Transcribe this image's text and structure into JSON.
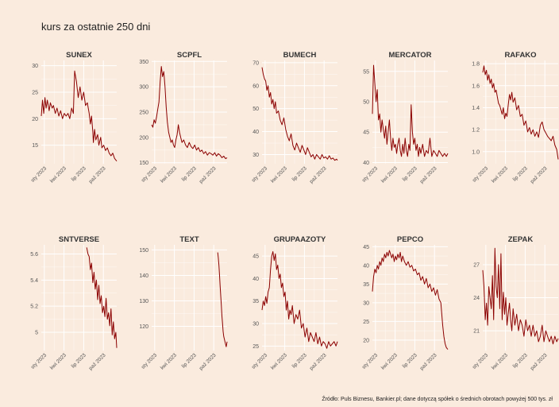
{
  "title": "kurs za ostatnie 250 dni",
  "caption": "Źródło: Puls Biznesu, Bankier.pl; dane dotyczą spółek o średnich obrotach powyżej 500 tys. zł",
  "colors": {
    "background": "#faebde",
    "series": "#8b0000",
    "grid": "#ffffff"
  },
  "chart_data": [
    {
      "type": "line",
      "title": "SUNEX",
      "ylim": [
        11.5,
        31
      ],
      "yticks": [
        15,
        20,
        25,
        30
      ],
      "xticks": [
        "sty 2023",
        "kwi 2023",
        "lip 2023",
        "paź 2023"
      ],
      "series": [
        {
          "x": [
            0,
            4,
            8,
            12,
            16,
            20,
            26,
            30,
            36,
            40,
            46,
            52,
            58,
            64,
            70,
            76,
            82,
            88,
            94,
            100,
            106,
            110,
            116,
            122,
            128,
            134,
            140,
            146,
            152,
            158,
            162,
            166,
            170,
            172,
            176,
            180,
            186,
            190,
            196,
            200,
            206,
            212,
            218,
            224,
            230,
            236,
            242,
            249
          ],
          "y": [
            20.5,
            23.5,
            21,
            24,
            22,
            23.5,
            21.5,
            23,
            22,
            22.5,
            21,
            22,
            20.5,
            21.5,
            20,
            21,
            20.5,
            21,
            20,
            22,
            21,
            29,
            27,
            24,
            26,
            23.5,
            25,
            22.5,
            23,
            21,
            19,
            20.5,
            17.5,
            15.5,
            18,
            16,
            17,
            15,
            16.5,
            14.5,
            15,
            14,
            14.5,
            13.5,
            13,
            13.5,
            12.5,
            12
          ]
        }
      ]
    },
    {
      "type": "line",
      "title": "SCPFL",
      "ylim": [
        148,
        352
      ],
      "yticks": [
        150,
        200,
        250,
        300,
        350
      ],
      "xticks": [
        "sty 2023",
        "kwi 2023",
        "lip 2023",
        "paź 2023"
      ],
      "series": [
        {
          "x": [
            0,
            4,
            8,
            12,
            16,
            20,
            24,
            28,
            32,
            36,
            40,
            44,
            48,
            52,
            56,
            60,
            64,
            68,
            72,
            76,
            80,
            84,
            88,
            92,
            96,
            100,
            106,
            112,
            118,
            124,
            130,
            136,
            142,
            148,
            154,
            160,
            166,
            172,
            178,
            184,
            190,
            196,
            202,
            208,
            214,
            220,
            226,
            232,
            238,
            244,
            249
          ],
          "y": [
            225,
            220,
            235,
            228,
            240,
            255,
            270,
            310,
            340,
            320,
            330,
            300,
            260,
            230,
            210,
            200,
            190,
            195,
            185,
            180,
            195,
            205,
            225,
            210,
            200,
            190,
            195,
            185,
            180,
            190,
            182,
            178,
            185,
            175,
            180,
            172,
            175,
            168,
            172,
            165,
            170,
            168,
            165,
            170,
            163,
            168,
            165,
            160,
            163,
            158,
            160
          ]
        }
      ]
    },
    {
      "type": "line",
      "title": "BUMECH",
      "ylim": [
        26,
        71
      ],
      "yticks": [
        30,
        40,
        50,
        60,
        70
      ],
      "xticks": [
        "sty 2023",
        "kwi 2023",
        "lip 2023",
        "paź 2023"
      ],
      "series": [
        {
          "x": [
            0,
            4,
            8,
            12,
            16,
            20,
            24,
            28,
            32,
            36,
            40,
            44,
            48,
            54,
            60,
            66,
            72,
            78,
            84,
            90,
            96,
            102,
            108,
            114,
            120,
            126,
            132,
            138,
            144,
            150,
            156,
            162,
            168,
            174,
            180,
            186,
            192,
            198,
            204,
            210,
            216,
            222,
            228,
            234,
            240,
            246,
            249
          ],
          "y": [
            68,
            65,
            63,
            62,
            58,
            60,
            55,
            57,
            52,
            54,
            50,
            53,
            48,
            49,
            45,
            43,
            46,
            41,
            38,
            36,
            39,
            34,
            32,
            35,
            33,
            31,
            34,
            32,
            30,
            33,
            31,
            29,
            30,
            28,
            30,
            29,
            28,
            30,
            28.5,
            29,
            28,
            29.5,
            28,
            28.5,
            27.5,
            28,
            27.5
          ]
        }
      ]
    },
    {
      "type": "line",
      "title": "MERCATOR",
      "ylim": [
        39.8,
        56.8
      ],
      "yticks": [
        40,
        45,
        50,
        55
      ],
      "xticks": [
        "sty 2023",
        "kwi 2023",
        "lip 2023",
        "paź 2023"
      ],
      "series": [
        {
          "x": [
            0,
            4,
            8,
            12,
            16,
            20,
            24,
            28,
            32,
            36,
            40,
            44,
            48,
            52,
            56,
            60,
            64,
            68,
            72,
            76,
            80,
            84,
            88,
            92,
            96,
            100,
            104,
            108,
            112,
            116,
            120,
            124,
            128,
            132,
            136,
            140,
            144,
            148,
            152,
            156,
            160,
            166,
            172,
            178,
            184,
            190,
            196,
            202,
            208,
            214,
            220,
            226,
            232,
            238,
            244,
            249
          ],
          "y": [
            48,
            56,
            53,
            50,
            52,
            47,
            48,
            45,
            47,
            45.5,
            44,
            46,
            43,
            45,
            47,
            44,
            42,
            44,
            42.5,
            43,
            41.5,
            43,
            44,
            42,
            41,
            43,
            41.5,
            44,
            42,
            41,
            43,
            42,
            49.5,
            45,
            43,
            44,
            42,
            43,
            41,
            42.5,
            41.5,
            43,
            41,
            42,
            41.5,
            44,
            41,
            42,
            41.5,
            41,
            42,
            41.5,
            41,
            41.5,
            41,
            41.5
          ]
        }
      ]
    },
    {
      "type": "line",
      "title": "RAFAKO",
      "ylim": [
        0.89,
        1.83
      ],
      "yticks": [
        1.0,
        1.2,
        1.4,
        1.6,
        1.8
      ],
      "xticks": [
        "sty 2023",
        "kwi 2023",
        "lip 2023",
        "paź 2023"
      ],
      "series": [
        {
          "x": [
            0,
            4,
            8,
            12,
            16,
            20,
            24,
            28,
            32,
            36,
            40,
            44,
            48,
            52,
            56,
            60,
            64,
            68,
            72,
            76,
            80,
            84,
            88,
            92,
            96,
            100,
            106,
            112,
            118,
            124,
            130,
            136,
            142,
            148,
            154,
            160,
            166,
            172,
            178,
            184,
            190,
            196,
            202,
            208,
            214,
            220,
            226,
            232,
            238,
            244,
            249
          ],
          "y": [
            1.72,
            1.78,
            1.7,
            1.74,
            1.65,
            1.7,
            1.62,
            1.66,
            1.58,
            1.62,
            1.54,
            1.56,
            1.5,
            1.44,
            1.42,
            1.38,
            1.34,
            1.4,
            1.3,
            1.35,
            1.32,
            1.42,
            1.52,
            1.47,
            1.54,
            1.45,
            1.49,
            1.38,
            1.42,
            1.32,
            1.34,
            1.24,
            1.28,
            1.18,
            1.22,
            1.16,
            1.2,
            1.14,
            1.18,
            1.13,
            1.24,
            1.27,
            1.2,
            1.17,
            1.14,
            1.12,
            1.1,
            1.14,
            1.06,
            1.02,
            0.93
          ]
        }
      ]
    },
    {
      "type": "line",
      "title": "SNTVERSE",
      "ylim": [
        4.86,
        5.67
      ],
      "yticks": [
        5.0,
        5.2,
        5.4,
        5.6
      ],
      "xticks": [
        "sty 2023",
        "kwi 2023",
        "lip 2023",
        "paź 2023"
      ],
      "series": [
        {
          "x": [
            150,
            154,
            158,
            162,
            166,
            170,
            174,
            178,
            182,
            186,
            190,
            194,
            198,
            202,
            206,
            210,
            214,
            218,
            222,
            226,
            230,
            234,
            238,
            242,
            246,
            249
          ],
          "y": [
            5.65,
            5.6,
            5.58,
            5.48,
            5.53,
            5.38,
            5.46,
            5.33,
            5.4,
            5.25,
            5.36,
            5.22,
            5.28,
            5.15,
            5.2,
            5.12,
            5.26,
            5.1,
            5.15,
            5.05,
            5.18,
            4.98,
            5.08,
            4.95,
            5.0,
            4.88
          ]
        }
      ]
    },
    {
      "type": "line",
      "title": "TEXT",
      "ylim": [
        110.5,
        152
      ],
      "yticks": [
        120,
        130,
        140,
        150
      ],
      "xticks": [
        "sty 2023",
        "kwi 2023",
        "lip 2023",
        "paź 2023"
      ],
      "series": [
        {
          "x": [
            218,
            220,
            222,
            224,
            226,
            228,
            230,
            232,
            234,
            236,
            238,
            240,
            242,
            244,
            246,
            249
          ],
          "y": [
            149,
            147,
            144,
            140,
            136,
            132,
            128,
            124,
            121,
            118,
            116,
            115,
            114,
            113,
            112,
            114
          ]
        }
      ]
    },
    {
      "type": "line",
      "title": "GRUPAAZOTY",
      "ylim": [
        24,
        47.5
      ],
      "yticks": [
        25,
        30,
        35,
        40,
        45
      ],
      "xticks": [
        "sty 2023",
        "kwi 2023",
        "lip 2023",
        "paź 2023"
      ],
      "series": [
        {
          "x": [
            0,
            4,
            8,
            12,
            16,
            20,
            24,
            28,
            32,
            36,
            40,
            44,
            48,
            52,
            56,
            60,
            64,
            68,
            72,
            76,
            80,
            84,
            88,
            92,
            96,
            100,
            106,
            112,
            118,
            124,
            130,
            136,
            142,
            148,
            154,
            160,
            166,
            172,
            178,
            184,
            190,
            196,
            202,
            208,
            214,
            220,
            226,
            232,
            238,
            244,
            249
          ],
          "y": [
            33,
            35,
            34,
            36,
            34.5,
            37,
            38,
            42,
            45,
            46,
            44,
            45.5,
            42,
            43,
            40,
            41,
            38,
            39,
            36,
            37,
            33,
            35,
            31,
            33,
            32,
            34,
            30,
            32,
            31,
            33,
            29,
            30,
            27,
            29,
            26,
            28,
            27,
            26,
            28,
            25.5,
            27,
            25,
            26,
            25.5,
            24.5,
            26,
            25,
            25.5,
            26,
            25,
            26
          ]
        }
      ]
    },
    {
      "type": "line",
      "title": "PEPCO",
      "ylim": [
        17.2,
        45.5
      ],
      "yticks": [
        20,
        25,
        30,
        35,
        40,
        45
      ],
      "xticks": [
        "sty 2023",
        "kwi 2023",
        "lip 2023",
        "paź 2023"
      ],
      "series": [
        {
          "x": [
            0,
            4,
            8,
            12,
            16,
            20,
            24,
            28,
            32,
            36,
            40,
            44,
            48,
            52,
            56,
            60,
            64,
            68,
            72,
            76,
            80,
            84,
            88,
            92,
            96,
            100,
            106,
            112,
            118,
            124,
            130,
            136,
            142,
            148,
            154,
            160,
            166,
            172,
            178,
            184,
            190,
            196,
            202,
            208,
            214,
            220,
            226,
            232,
            236,
            240,
            244,
            249
          ],
          "y": [
            33,
            37,
            39,
            38,
            40,
            39,
            41,
            40,
            42,
            41,
            43,
            42,
            43.5,
            42.5,
            44,
            43,
            42,
            43,
            41,
            42.5,
            41.5,
            43,
            42,
            43.5,
            41,
            42.5,
            41,
            40,
            41,
            39.5,
            40,
            38.5,
            39,
            37.5,
            38,
            36,
            37,
            35,
            36.5,
            34,
            35,
            33,
            34,
            32,
            33.5,
            31,
            30,
            24,
            21,
            19,
            18,
            17.5
          ]
        }
      ]
    },
    {
      "type": "line",
      "title": "ZEPAK",
      "ylim": [
        19.2,
        28.8
      ],
      "yticks": [
        21,
        24,
        27
      ],
      "xticks": [
        "sty 2023",
        "kwi 2023",
        "lip 2023",
        "paź 2023"
      ],
      "series": [
        {
          "x": [
            0,
            4,
            8,
            12,
            16,
            20,
            24,
            28,
            32,
            36,
            40,
            44,
            48,
            52,
            56,
            60,
            64,
            68,
            72,
            76,
            80,
            84,
            88,
            92,
            96,
            100,
            106,
            112,
            118,
            124,
            130,
            136,
            142,
            148,
            154,
            160,
            166,
            172,
            178,
            184,
            190,
            196,
            202,
            208,
            214,
            220,
            226,
            232,
            238,
            244,
            249
          ],
          "y": [
            26.5,
            25,
            22,
            23.5,
            21.5,
            25,
            24,
            23,
            26,
            22,
            28.5,
            25,
            24,
            27,
            23,
            28,
            22,
            24.5,
            22.5,
            24,
            21.5,
            22.5,
            23.5,
            22,
            21,
            23,
            21.5,
            22.5,
            21,
            22,
            21.5,
            20.5,
            22,
            21,
            21.5,
            20.5,
            21.5,
            20.5,
            21,
            20,
            20.5,
            21.5,
            20,
            21,
            20.5,
            20,
            20.5,
            19.8,
            20.5,
            20,
            20.3
          ]
        }
      ]
    }
  ]
}
